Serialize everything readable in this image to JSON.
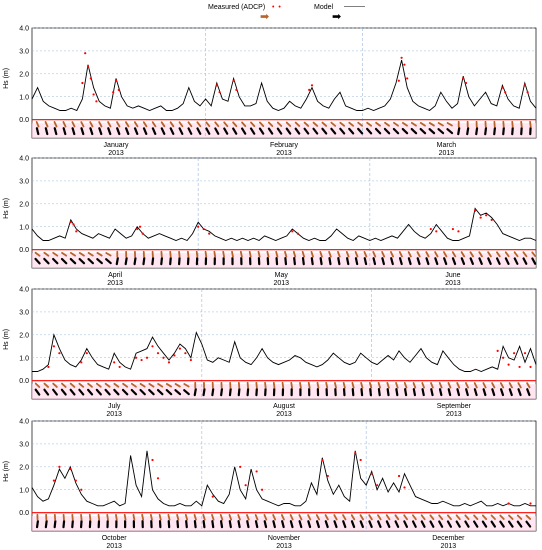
{
  "legend": {
    "measured_label": "Measured (ADCP)",
    "model_label": "Model",
    "measured_color": "#ff0000",
    "model_color": "#000000",
    "measured_arrow_color": "#b8642a",
    "model_arrow_color": "#000000",
    "arrow_icon": "right-arrow-icon"
  },
  "ylabel": "Hs (m)",
  "colors": {
    "measured": "#ff0000",
    "model": "#000000",
    "grid": "#9db9da",
    "baseline": "#ff0000",
    "zone": "#ffd6e6"
  },
  "chart_data": [
    {
      "type": "line",
      "ylabel": "Hs (m)",
      "ylim": [
        -0.8,
        4.0
      ],
      "yticks": [
        "4.0",
        "3.0",
        "2.0",
        "1.0",
        "0.0"
      ],
      "xlim": [
        0,
        90
      ],
      "months": [
        {
          "name": "January",
          "year": "2013",
          "day": 15
        },
        {
          "name": "February",
          "year": "2013",
          "day": 45
        },
        {
          "name": "March",
          "year": "2013",
          "day": 74
        }
      ],
      "month_boundaries": [
        31,
        59
      ],
      "series": [
        {
          "name": "Model",
          "x": [
            0,
            1,
            2,
            3,
            4,
            5,
            6,
            7,
            8,
            9,
            10,
            11,
            12,
            13,
            14,
            15,
            16,
            17,
            18,
            19,
            20,
            21,
            22,
            23,
            24,
            25,
            26,
            27,
            28,
            29,
            30,
            31,
            32,
            33,
            34,
            35,
            36,
            37,
            38,
            39,
            40,
            41,
            42,
            43,
            44,
            45,
            46,
            47,
            48,
            49,
            50,
            51,
            52,
            53,
            54,
            55,
            56,
            57,
            58,
            59,
            60,
            61,
            62,
            63,
            64,
            65,
            66,
            67,
            68,
            69,
            70,
            71,
            72,
            73,
            74,
            75,
            76,
            77,
            78,
            79,
            80,
            81,
            82,
            83,
            84,
            85,
            86,
            87,
            88,
            89,
            90
          ],
          "y": [
            0.9,
            1.4,
            0.8,
            0.6,
            0.5,
            0.4,
            0.4,
            0.5,
            0.4,
            0.9,
            2.4,
            1.4,
            0.8,
            0.6,
            0.5,
            1.8,
            1.0,
            0.6,
            0.5,
            0.6,
            0.5,
            0.4,
            0.5,
            0.6,
            0.4,
            0.4,
            0.5,
            0.7,
            1.4,
            0.8,
            0.6,
            0.9,
            0.6,
            1.6,
            0.9,
            0.8,
            1.8,
            1.0,
            0.6,
            0.6,
            0.7,
            1.6,
            0.8,
            0.5,
            0.4,
            0.5,
            0.8,
            0.6,
            0.5,
            0.9,
            1.4,
            0.8,
            0.6,
            0.5,
            0.9,
            1.2,
            0.6,
            0.5,
            0.4,
            0.4,
            0.5,
            0.4,
            0.5,
            0.6,
            0.9,
            1.6,
            2.6,
            1.4,
            0.8,
            0.6,
            0.5,
            0.4,
            0.6,
            1.2,
            0.8,
            0.5,
            0.7,
            1.9,
            1.0,
            0.6,
            0.9,
            1.2,
            0.7,
            0.6,
            1.5,
            0.9,
            0.6,
            0.5,
            1.6,
            0.8,
            0.5
          ]
        },
        {
          "name": "Measured (ADCP)",
          "x": [
            9,
            9.5,
            10,
            10.5,
            11,
            11.5,
            14.5,
            15,
            15.5,
            33,
            33.5,
            36,
            36.5,
            49.5,
            50,
            65.5,
            66,
            66.5,
            67,
            77,
            77.5,
            84,
            84.5,
            88,
            88.5
          ],
          "y": [
            1.6,
            2.9,
            2.3,
            1.8,
            1.1,
            0.8,
            1.2,
            1.7,
            1.3,
            1.5,
            1.2,
            1.7,
            1.3,
            1.3,
            1.5,
            1.7,
            2.7,
            2.4,
            1.8,
            1.8,
            1.6,
            1.4,
            1.2,
            1.5,
            1.2
          ]
        }
      ]
    },
    {
      "type": "line",
      "ylabel": "Hs (m)",
      "ylim": [
        -0.8,
        4.0
      ],
      "yticks": [
        "4.0",
        "3.0",
        "2.0",
        "1.0",
        "0.0"
      ],
      "xlim": [
        90,
        181
      ],
      "months": [
        {
          "name": "April",
          "year": "2013",
          "day": 105
        },
        {
          "name": "May",
          "year": "2013",
          "day": 135
        },
        {
          "name": "June",
          "year": "2013",
          "day": 166
        }
      ],
      "month_boundaries": [
        120,
        151
      ],
      "series": [
        {
          "name": "Model",
          "x": [
            90,
            91,
            92,
            93,
            94,
            95,
            96,
            97,
            98,
            99,
            100,
            101,
            102,
            103,
            104,
            105,
            106,
            107,
            108,
            109,
            110,
            111,
            112,
            113,
            114,
            115,
            116,
            117,
            118,
            119,
            120,
            121,
            122,
            123,
            124,
            125,
            126,
            127,
            128,
            129,
            130,
            131,
            132,
            133,
            134,
            135,
            136,
            137,
            138,
            139,
            140,
            141,
            142,
            143,
            144,
            145,
            146,
            147,
            148,
            149,
            150,
            151,
            152,
            153,
            154,
            155,
            156,
            157,
            158,
            159,
            160,
            161,
            162,
            163,
            164,
            165,
            166,
            167,
            168,
            169,
            170,
            171,
            172,
            173,
            174,
            175,
            176,
            177,
            178,
            179,
            180,
            181
          ],
          "y": [
            0.9,
            0.6,
            0.4,
            0.4,
            0.5,
            0.6,
            0.5,
            1.3,
            0.9,
            0.7,
            0.6,
            0.5,
            0.7,
            0.6,
            0.5,
            0.9,
            0.7,
            0.5,
            0.6,
            1.0,
            0.7,
            0.5,
            0.6,
            0.7,
            0.6,
            0.5,
            0.4,
            0.5,
            0.4,
            0.7,
            1.2,
            0.9,
            0.8,
            0.6,
            0.5,
            0.4,
            0.5,
            0.4,
            0.5,
            0.4,
            0.5,
            0.4,
            0.6,
            0.5,
            0.4,
            0.5,
            0.6,
            0.9,
            0.7,
            0.5,
            0.4,
            0.5,
            0.4,
            0.4,
            0.6,
            0.9,
            0.7,
            0.5,
            0.4,
            0.6,
            0.5,
            0.4,
            0.5,
            0.4,
            0.5,
            0.6,
            0.5,
            0.8,
            1.1,
            0.8,
            0.6,
            0.5,
            0.7,
            1.1,
            0.8,
            0.5,
            0.4,
            0.4,
            0.5,
            0.6,
            1.8,
            1.5,
            1.6,
            1.4,
            1.1,
            0.7,
            0.6,
            0.5,
            0.4,
            0.5,
            0.5,
            0.4
          ]
        },
        {
          "name": "Measured (ADCP)",
          "x": [
            97,
            97.5,
            98,
            109,
            109.5,
            110,
            120,
            121,
            122,
            137,
            138,
            162,
            163,
            166,
            167,
            170,
            171,
            172,
            173
          ],
          "y": [
            1.2,
            1.1,
            0.8,
            0.9,
            1.0,
            0.7,
            1.0,
            0.9,
            0.7,
            0.8,
            0.7,
            0.9,
            0.8,
            0.9,
            0.8,
            1.7,
            1.4,
            1.5,
            1.3
          ]
        }
      ]
    },
    {
      "type": "line",
      "ylabel": "Hs (m)",
      "ylim": [
        -0.8,
        4.0
      ],
      "yticks": [
        "4.0",
        "3.0",
        "2.0",
        "1.0",
        "0.0"
      ],
      "xlim": [
        181,
        273
      ],
      "months": [
        {
          "name": "July",
          "year": "2013",
          "day": 196
        },
        {
          "name": "August",
          "year": "2013",
          "day": 227
        },
        {
          "name": "September",
          "year": "2013",
          "day": 258
        }
      ],
      "month_boundaries": [
        212,
        243
      ],
      "series": [
        {
          "name": "Model",
          "x": [
            181,
            182,
            183,
            184,
            185,
            186,
            187,
            188,
            189,
            190,
            191,
            192,
            193,
            194,
            195,
            196,
            197,
            198,
            199,
            200,
            201,
            202,
            203,
            204,
            205,
            206,
            207,
            208,
            209,
            210,
            211,
            212,
            213,
            214,
            215,
            216,
            217,
            218,
            219,
            220,
            221,
            222,
            223,
            224,
            225,
            226,
            227,
            228,
            229,
            230,
            231,
            232,
            233,
            234,
            235,
            236,
            237,
            238,
            239,
            240,
            241,
            242,
            243,
            244,
            245,
            246,
            247,
            248,
            249,
            250,
            251,
            252,
            253,
            254,
            255,
            256,
            257,
            258,
            259,
            260,
            261,
            262,
            263,
            264,
            265,
            266,
            267,
            268,
            269,
            270,
            271,
            272,
            273
          ],
          "y": [
            0.4,
            0.4,
            0.5,
            0.7,
            2.0,
            1.4,
            0.9,
            0.7,
            0.6,
            0.9,
            1.4,
            1.0,
            0.7,
            0.6,
            0.5,
            1.2,
            0.8,
            0.6,
            0.5,
            1.2,
            1.3,
            1.4,
            1.9,
            1.5,
            1.2,
            0.9,
            1.2,
            1.6,
            1.4,
            1.0,
            2.1,
            1.6,
            0.9,
            0.8,
            1.0,
            0.9,
            0.8,
            1.7,
            1.0,
            0.8,
            0.7,
            1.0,
            1.4,
            1.0,
            0.8,
            0.7,
            0.8,
            0.9,
            1.1,
            1.0,
            0.8,
            0.7,
            0.6,
            0.7,
            0.9,
            1.2,
            1.0,
            0.8,
            0.7,
            0.8,
            1.2,
            1.0,
            0.8,
            0.7,
            0.9,
            1.1,
            0.9,
            1.3,
            1.0,
            0.8,
            1.1,
            1.4,
            1.0,
            0.8,
            0.7,
            1.3,
            1.0,
            0.7,
            0.5,
            0.4,
            0.4,
            0.5,
            0.4,
            0.5,
            0.6,
            0.5,
            1.5,
            1.0,
            0.9,
            1.5,
            0.8,
            1.4,
            0.7
          ]
        },
        {
          "name": "Measured (ADCP)",
          "x": [
            184,
            185,
            186,
            190,
            191,
            196,
            197,
            200,
            201,
            202,
            203,
            204,
            205,
            206,
            207,
            208,
            209,
            210,
            266,
            267,
            268,
            269,
            270,
            271,
            272
          ],
          "y": [
            0.6,
            1.5,
            1.2,
            0.8,
            1.2,
            0.8,
            0.6,
            1.0,
            0.9,
            1.0,
            1.5,
            1.2,
            1.0,
            0.8,
            1.1,
            1.4,
            1.2,
            0.9,
            1.3,
            1.0,
            0.7,
            1.2,
            0.6,
            1.2,
            0.6
          ]
        }
      ]
    },
    {
      "type": "line",
      "ylabel": "Hs (m)",
      "ylim": [
        -0.8,
        4.0
      ],
      "yticks": [
        "4.0",
        "3.0",
        "2.0",
        "1.0",
        "0.0"
      ],
      "xlim": [
        273,
        365
      ],
      "months": [
        {
          "name": "October",
          "year": "2013",
          "day": 288
        },
        {
          "name": "November",
          "year": "2013",
          "day": 319
        },
        {
          "name": "December",
          "year": "2013",
          "day": 349
        }
      ],
      "month_boundaries": [
        304,
        334
      ],
      "series": [
        {
          "name": "Model",
          "x": [
            273,
            274,
            275,
            276,
            277,
            278,
            279,
            280,
            281,
            282,
            283,
            284,
            285,
            286,
            287,
            288,
            289,
            290,
            291,
            292,
            293,
            294,
            295,
            296,
            297,
            298,
            299,
            300,
            301,
            302,
            303,
            304,
            305,
            306,
            307,
            308,
            309,
            310,
            311,
            312,
            313,
            314,
            315,
            316,
            317,
            318,
            319,
            320,
            321,
            322,
            323,
            324,
            325,
            326,
            327,
            328,
            329,
            330,
            331,
            332,
            333,
            334,
            335,
            336,
            337,
            338,
            339,
            340,
            341,
            342,
            343,
            344,
            345,
            346,
            347,
            348,
            349,
            350,
            351,
            352,
            353,
            354,
            355,
            356,
            357,
            358,
            359,
            360,
            361,
            362,
            363,
            364,
            365
          ],
          "y": [
            1.1,
            0.7,
            0.5,
            0.6,
            1.2,
            1.9,
            1.5,
            2.0,
            1.3,
            0.8,
            0.5,
            0.4,
            0.3,
            0.3,
            0.4,
            0.5,
            0.3,
            0.4,
            2.5,
            1.2,
            0.7,
            2.7,
            1.0,
            0.6,
            0.4,
            0.3,
            0.3,
            0.4,
            0.3,
            0.3,
            0.5,
            0.3,
            1.2,
            0.8,
            0.5,
            0.4,
            0.8,
            2.0,
            1.0,
            0.6,
            1.9,
            1.0,
            0.6,
            0.5,
            0.4,
            0.3,
            0.4,
            0.4,
            0.3,
            0.3,
            0.5,
            1.3,
            0.8,
            2.4,
            1.4,
            0.8,
            1.2,
            0.7,
            0.5,
            2.7,
            1.5,
            1.2,
            1.8,
            1.0,
            1.5,
            0.9,
            1.3,
            0.9,
            1.7,
            1.2,
            0.7,
            0.6,
            0.5,
            0.4,
            0.4,
            0.5,
            0.4,
            0.3,
            0.3,
            0.4,
            0.3,
            0.4,
            0.5,
            0.3,
            0.3,
            0.4,
            0.3,
            0.4,
            0.3,
            0.3,
            0.4,
            0.3,
            0.3
          ]
        },
        {
          "name": "Measured (ADCP)",
          "x": [
            277,
            278,
            280,
            281,
            282,
            295,
            296,
            306,
            311,
            312,
            314,
            315,
            326,
            327,
            332,
            333,
            335,
            336,
            340,
            341,
            360,
            364
          ],
          "y": [
            1.4,
            2.0,
            1.9,
            1.4,
            1.0,
            2.3,
            1.5,
            0.7,
            2.0,
            1.2,
            1.8,
            1.0,
            2.3,
            1.6,
            2.6,
            2.3,
            1.7,
            1.2,
            1.6,
            1.1,
            0.4,
            0.4
          ]
        }
      ]
    }
  ]
}
